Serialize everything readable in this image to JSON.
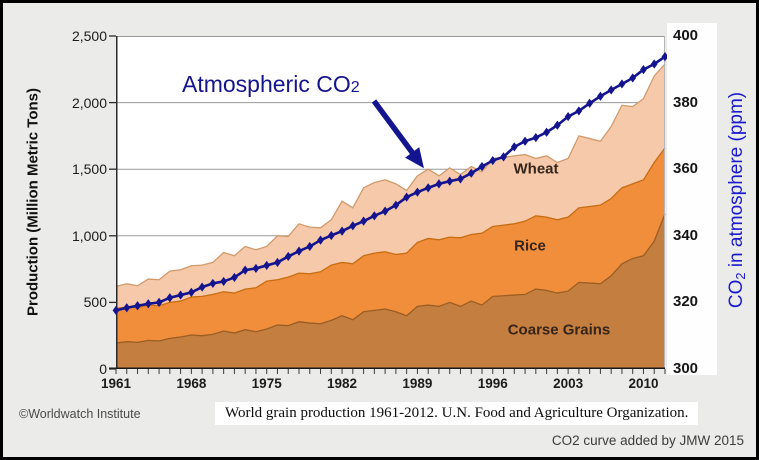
{
  "footer": {
    "attribution": "©Worldwatch Institute",
    "caption": "World grain production 1961-2012. U.N. Food and Agriculture Organization.",
    "credit": "CO2 curve added by JMW 2015"
  },
  "annotation": {
    "co2_label_pre": "Atmospheric CO",
    "co2_label_sub": "2"
  },
  "chart_data": {
    "type": "area",
    "stacked": true,
    "grid": true,
    "x_years": [
      1961,
      1962,
      1963,
      1964,
      1965,
      1966,
      1967,
      1968,
      1969,
      1970,
      1971,
      1972,
      1973,
      1974,
      1975,
      1976,
      1977,
      1978,
      1979,
      1980,
      1981,
      1982,
      1983,
      1984,
      1985,
      1986,
      1987,
      1988,
      1989,
      1990,
      1991,
      1992,
      1993,
      1994,
      1995,
      1996,
      1997,
      1998,
      1999,
      2000,
      2001,
      2002,
      2003,
      2004,
      2005,
      2006,
      2007,
      2008,
      2009,
      2010,
      2011,
      2012
    ],
    "series": [
      {
        "name": "Coarse Grains",
        "color": "#c47e40",
        "edge": "#9a5e24",
        "values": [
          195,
          205,
          200,
          215,
          210,
          230,
          240,
          255,
          250,
          260,
          285,
          270,
          295,
          280,
          300,
          330,
          325,
          355,
          345,
          340,
          365,
          400,
          370,
          430,
          440,
          450,
          430,
          400,
          470,
          480,
          470,
          500,
          470,
          510,
          480,
          545,
          550,
          555,
          560,
          600,
          590,
          570,
          585,
          650,
          645,
          640,
          700,
          790,
          830,
          850,
          960,
          1165
        ]
      },
      {
        "name": "Rice",
        "color": "#f08e3b",
        "edge": "#c76d12",
        "values": [
          260,
          260,
          260,
          265,
          265,
          270,
          270,
          285,
          295,
          300,
          295,
          300,
          305,
          330,
          360,
          340,
          365,
          365,
          370,
          390,
          415,
          400,
          420,
          420,
          430,
          430,
          430,
          470,
          480,
          500,
          500,
          490,
          515,
          500,
          540,
          525,
          530,
          535,
          550,
          550,
          550,
          550,
          555,
          560,
          575,
          590,
          580,
          570,
          560,
          570,
          590,
          495
        ]
      },
      {
        "name": "Wheat",
        "color": "#f6c9aa",
        "edge": "#d09a6a",
        "values": [
          165,
          175,
          165,
          195,
          195,
          235,
          235,
          235,
          235,
          240,
          295,
          280,
          320,
          285,
          260,
          330,
          305,
          370,
          350,
          330,
          340,
          460,
          420,
          510,
          530,
          540,
          530,
          470,
          500,
          520,
          480,
          520,
          475,
          510,
          460,
          510,
          510,
          510,
          500,
          430,
          460,
          430,
          440,
          540,
          510,
          480,
          540,
          620,
          580,
          610,
          650,
          630
        ]
      }
    ],
    "co2": {
      "name": "Atmospheric CO2",
      "color": "#14148e",
      "axis": "right",
      "values": [
        317.6,
        318.4,
        319.0,
        319.6,
        320.0,
        321.4,
        322.2,
        323.0,
        324.6,
        325.7,
        326.3,
        327.5,
        329.7,
        330.2,
        331.1,
        332.0,
        333.8,
        335.4,
        336.8,
        338.7,
        340.1,
        341.4,
        343.0,
        344.4,
        346.0,
        347.4,
        349.2,
        351.6,
        353.1,
        354.4,
        355.6,
        356.4,
        357.1,
        358.8,
        360.8,
        362.6,
        363.7,
        366.7,
        368.4,
        369.5,
        371.1,
        373.2,
        375.8,
        377.5,
        379.8,
        381.9,
        383.8,
        385.6,
        387.4,
        389.9,
        391.6,
        393.8
      ]
    },
    "left_axis": {
      "label": "Production (Million Metric Tons)",
      "range": [
        0,
        2500
      ],
      "ticks": [
        0,
        500,
        1000,
        1500,
        2000,
        2500
      ],
      "tick_labels": [
        "0",
        "500",
        "1,000",
        "1,500",
        "2,000",
        "2,500"
      ]
    },
    "right_axis": {
      "label_pre": "CO",
      "label_sub": "2",
      "label_post": " in atmosphere (ppm)",
      "color": "#1a1ace",
      "range": [
        300,
        400
      ],
      "ticks": [
        300,
        320,
        340,
        360,
        380,
        400
      ],
      "tick_labels": [
        "300",
        "320",
        "340",
        "360",
        "380",
        "400"
      ]
    },
    "x_axis": {
      "labeled_ticks": [
        "1961",
        "1968",
        "1975",
        "1982",
        "1989",
        "1996",
        "2003",
        "2010"
      ],
      "labeled_tick_years": [
        1961,
        1968,
        1975,
        1982,
        1989,
        1996,
        2003,
        2010
      ],
      "minor_tick_every_year": true
    },
    "gridline_color": "#9a9a9a"
  }
}
